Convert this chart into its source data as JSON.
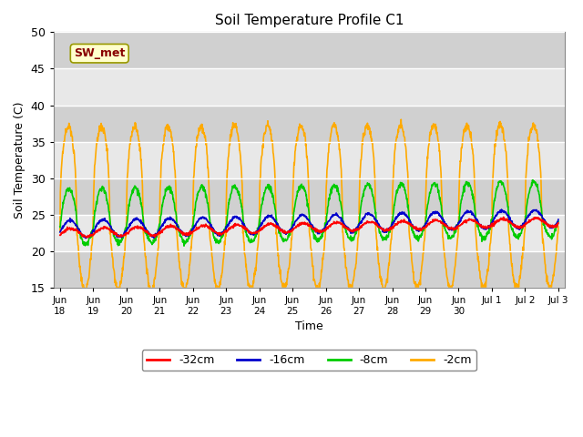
{
  "title": "Soil Temperature Profile C1",
  "xlabel": "Time",
  "ylabel": "Soil Temperature (C)",
  "ylim": [
    15,
    50
  ],
  "yticks": [
    15,
    20,
    25,
    30,
    35,
    40,
    45,
    50
  ],
  "annotation_text": "SW_met",
  "annotation_bg": "#ffffcc",
  "annotation_border": "#999900",
  "annotation_text_color": "#880000",
  "line_colors": {
    "-32cm": "#ff0000",
    "-16cm": "#0000cc",
    "-8cm": "#00cc00",
    "-2cm": "#ffaa00"
  },
  "plot_bg": "#e8e8e8",
  "fig_bg": "#ffffff",
  "grid_color": "#ffffff",
  "band_color": "#d0d0d0",
  "days": 15,
  "n_points": 1500
}
